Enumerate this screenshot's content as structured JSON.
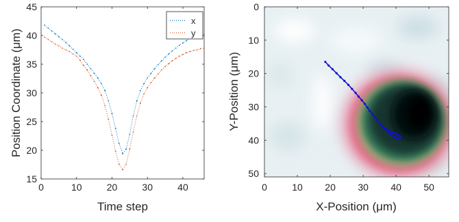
{
  "chart_data": [
    {
      "type": "line",
      "xlabel": "Time step",
      "ylabel": "Position Coordinate (μm)",
      "xlim": [
        0,
        46
      ],
      "ylim": [
        15,
        45
      ],
      "xticks": [
        0,
        10,
        20,
        30,
        40
      ],
      "yticks": [
        15,
        20,
        25,
        30,
        35,
        40,
        45
      ],
      "legend_position": "top-right",
      "series": [
        {
          "name": "x",
          "color": "#0072BD",
          "style": "dotted-with-markers",
          "x": [
            1,
            2,
            3,
            4,
            5,
            6,
            7,
            8,
            9,
            10,
            11,
            12,
            13,
            14,
            15,
            16,
            17,
            18,
            19,
            20,
            21,
            22,
            23,
            24,
            25,
            26,
            27,
            28,
            29,
            30,
            31,
            32,
            33,
            34,
            35,
            36,
            37,
            38,
            39,
            40,
            41,
            42,
            43,
            44,
            45,
            46
          ],
          "values": [
            41.8,
            41.3,
            40.8,
            40.3,
            39.8,
            39.3,
            38.8,
            38.2,
            37.6,
            37.0,
            36.4,
            35.8,
            35.0,
            34.2,
            33.4,
            32.6,
            31.6,
            30.4,
            28.6,
            26.4,
            23.8,
            21.2,
            19.4,
            20.2,
            22.8,
            26.0,
            28.6,
            30.4,
            31.6,
            32.6,
            33.4,
            34.2,
            34.9,
            35.6,
            36.2,
            36.8,
            37.3,
            37.8,
            38.3,
            38.7,
            39.1,
            39.5,
            39.8,
            40.0,
            40.2,
            40.2
          ]
        },
        {
          "name": "y",
          "color": "#D95319",
          "style": "dotted-with-markers",
          "x": [
            1,
            2,
            3,
            4,
            5,
            6,
            7,
            8,
            9,
            10,
            11,
            12,
            13,
            14,
            15,
            16,
            17,
            18,
            19,
            20,
            21,
            22,
            23,
            24,
            25,
            26,
            27,
            28,
            29,
            30,
            31,
            32,
            33,
            34,
            35,
            36,
            37,
            38,
            39,
            40,
            41,
            42,
            43,
            44,
            45,
            46
          ],
          "values": [
            39.7,
            39.3,
            38.9,
            38.5,
            38.2,
            37.8,
            37.5,
            37.2,
            36.8,
            36.4,
            35.7,
            34.8,
            34.0,
            33.0,
            32.0,
            30.9,
            29.6,
            27.8,
            25.4,
            22.6,
            19.8,
            17.6,
            16.6,
            17.6,
            20.2,
            23.2,
            26.0,
            28.2,
            29.8,
            30.9,
            31.8,
            32.6,
            33.3,
            34.0,
            34.6,
            35.1,
            35.6,
            36.0,
            36.4,
            36.7,
            37.0,
            37.2,
            37.4,
            37.5,
            37.7,
            37.8
          ]
        }
      ]
    },
    {
      "type": "heatmap",
      "xlabel": "X-Position (μm)",
      "ylabel": "Y-Position (μm)",
      "xlim": [
        0,
        56
      ],
      "ylim": [
        51,
        0
      ],
      "xticks": [
        0,
        10,
        20,
        30,
        40,
        50
      ],
      "yticks": [
        0,
        10,
        20,
        30,
        40,
        50
      ],
      "y_reversed": true,
      "colors": {
        "background": "#e6eff2",
        "blob_core": "#000000",
        "blob_mid": "#14342d",
        "blob_edge_green": "#5aa068",
        "blob_rim": "#e4577a",
        "trajectory": "#1111cc"
      },
      "trajectory": {
        "x": [
          18.5,
          19.5,
          20.7,
          21.9,
          23.1,
          24.3,
          25.5,
          26.6,
          27.7,
          28.6,
          29.6,
          30.5,
          31.3,
          32.0,
          32.8,
          33.5,
          34.3,
          35.1,
          36.0,
          36.8,
          37.6,
          38.4,
          39.2,
          40.0,
          40.6,
          41.0,
          41.4,
          40.8,
          40.2,
          39.4,
          38.6,
          37.8,
          37.0,
          36.4,
          35.8
        ],
        "y": [
          16.5,
          17.6,
          18.7,
          19.9,
          21.1,
          22.2,
          23.4,
          24.6,
          25.8,
          26.9,
          28.0,
          29.1,
          30.2,
          31.2,
          32.2,
          33.1,
          34.0,
          35.0,
          35.9,
          36.7,
          37.5,
          38.2,
          38.8,
          39.3,
          39.6,
          39.4,
          38.9,
          38.5,
          38.1,
          37.8,
          37.5,
          37.2,
          36.8,
          36.4,
          36.0
        ]
      }
    }
  ]
}
